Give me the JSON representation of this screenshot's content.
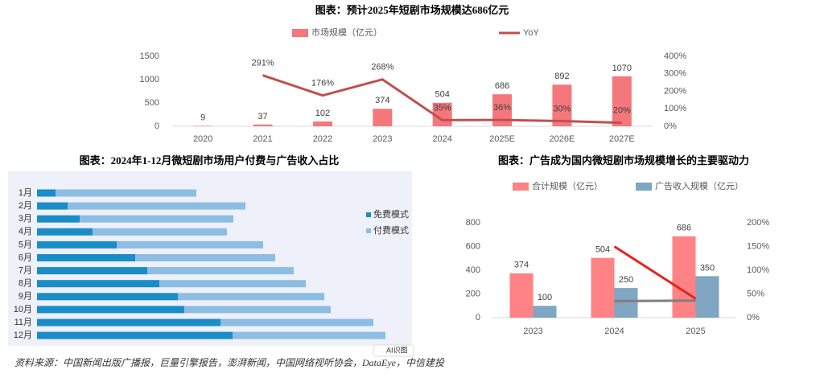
{
  "chart_data": [
    {
      "type": "combo",
      "title": "图表：预计2025年短剧市场规模达686亿元",
      "categories": [
        "2020",
        "2021",
        "2022",
        "2023",
        "2024",
        "2025E",
        "2026E",
        "2027E"
      ],
      "series": [
        {
          "name": "市场规模（亿元）",
          "type": "bar",
          "color": "#f4777b",
          "values": [
            9,
            37,
            102,
            374,
            504,
            686,
            892,
            1070
          ]
        },
        {
          "name": "YoY",
          "type": "line",
          "axis": "y2",
          "color": "#c0504d",
          "values": [
            null,
            291,
            176,
            268,
            35,
            36,
            30,
            20
          ],
          "value_labels": [
            null,
            "291%",
            "176%",
            "268%",
            "35%",
            "36%",
            "30%",
            "20%"
          ]
        }
      ],
      "ylim": [
        0,
        1500
      ],
      "yticks": [
        0,
        500,
        1000,
        1500
      ],
      "y2lim": [
        0,
        400
      ],
      "y2ticks": [
        {
          "value": 0,
          "label": "0%"
        },
        {
          "value": 100,
          "label": "100%"
        },
        {
          "value": 200,
          "label": "200%"
        },
        {
          "value": 300,
          "label": "300%"
        },
        {
          "value": 400,
          "label": "400%"
        }
      ],
      "grid": false,
      "legend": "top"
    },
    {
      "type": "bar",
      "orientation": "horizontal",
      "stacked": true,
      "title": "图表：2024年1-12月微短剧市场用户付费与广告收入占比",
      "categories": [
        "1月",
        "2月",
        "3月",
        "4月",
        "5月",
        "6月",
        "7月",
        "8月",
        "9月",
        "10月",
        "11月",
        "12月"
      ],
      "series": [
        {
          "name": "免费模式",
          "color": "#1a8dc8",
          "values": [
            23,
            38,
            53,
            69,
            99,
            122,
            137,
            152,
            175,
            183,
            228,
            243
          ]
        },
        {
          "name": "付费模式",
          "color": "#8dbde2",
          "values": [
            175,
            221,
            191,
            167,
            182,
            174,
            182,
            182,
            182,
            182,
            190,
            190
          ]
        }
      ],
      "xlim": [
        0,
        450
      ],
      "legend": "right",
      "background": "#eef0fa"
    },
    {
      "type": "combo",
      "title": "图表：广告成为国内微短剧市场规模增长的主要驱动力",
      "categories": [
        "2023",
        "2024",
        "2025"
      ],
      "series": [
        {
          "name": "合计规模（亿元）",
          "type": "bar",
          "color": "#ff8285",
          "values": [
            374,
            504,
            686
          ]
        },
        {
          "name": "广告收入规模（亿元）",
          "type": "bar",
          "color": "#7fa6c2",
          "values": [
            100,
            250,
            350
          ]
        },
        {
          "type": "line",
          "axis": "y2",
          "color": "#e8221b",
          "values": [
            null,
            150,
            40
          ]
        },
        {
          "type": "line",
          "axis": "y2",
          "color": "#7f7f7f",
          "values": [
            null,
            35,
            36
          ]
        }
      ],
      "ylim": [
        0,
        800
      ],
      "yticks": [
        0,
        200,
        400,
        600,
        800
      ],
      "y2lim": [
        0,
        200
      ],
      "y2ticks": [
        {
          "value": 0,
          "label": "0%"
        },
        {
          "value": 50,
          "label": "50%"
        },
        {
          "value": 100,
          "label": "100%"
        },
        {
          "value": 150,
          "label": "150%"
        },
        {
          "value": 200,
          "label": "200%"
        }
      ],
      "grid": false,
      "legend": "top"
    }
  ],
  "source": "资料来源：中国新闻出版广播报，巨量引擎报告，澎湃新闻，中国网络视听协会，DataEye，中信建投",
  "ai_button": "AI识图"
}
